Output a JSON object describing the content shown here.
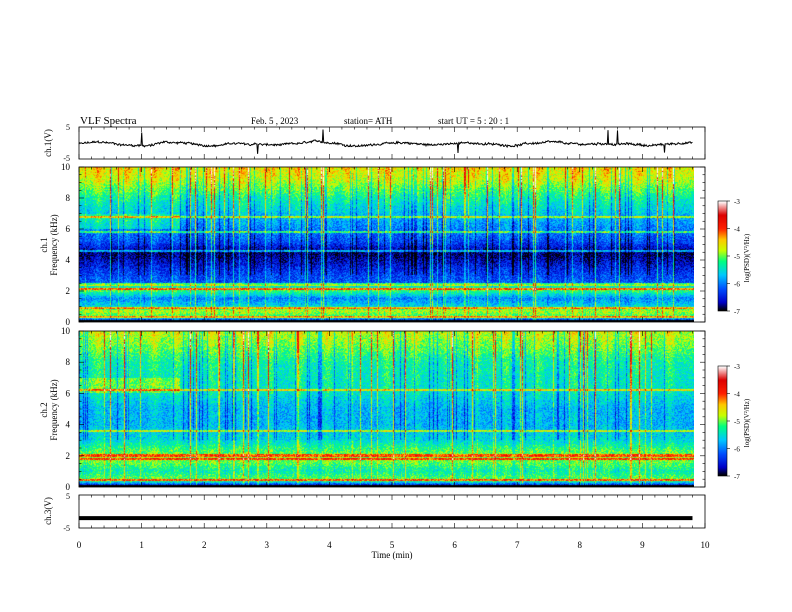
{
  "header": {
    "title": "VLF  Spectra",
    "date": "Feb. 5  , 2023",
    "station": "station= ATH",
    "start_ut": "start  UT  =    5  : 20 : 1"
  },
  "chart_data": [
    {
      "type": "line",
      "panel": "ch1-waveform",
      "ylabel": "ch.1(V)",
      "yticks": [
        "5",
        "-5"
      ],
      "ylim": [
        -5,
        5
      ],
      "xlim": [
        0,
        10
      ],
      "x_end": 9.8,
      "baseline": -0.3,
      "noise_amplitude": 0.35,
      "spike_times": [
        1.0,
        2.85,
        3.9,
        6.05,
        8.45,
        8.6,
        9.35
      ]
    },
    {
      "type": "heatmap",
      "panel": "ch1-spectrogram",
      "ylabel": "ch.1\nFrequency  (kHz)",
      "yticks": [
        "0",
        "2",
        "4",
        "6",
        "8",
        "10"
      ],
      "ylim": [
        0,
        10
      ],
      "xlim": [
        0,
        10
      ],
      "x_end": 9.8,
      "colorbar": {
        "label": "log(PSD)(V²/Hz)",
        "ticks": [
          "-3",
          "-4",
          "-5",
          "-6",
          "-7"
        ],
        "range": [
          -7,
          -3
        ],
        "colors": [
          "#000000",
          "#0000c8",
          "#0050ff",
          "#00c8ff",
          "#00ff80",
          "#c8ff00",
          "#ffc800",
          "#ff2000",
          "#e00000",
          "#ffffff"
        ]
      },
      "frequency_profile_log_psd": [
        {
          "f": 0.0,
          "v": -7.0
        },
        {
          "f": 0.3,
          "v": -5.2
        },
        {
          "f": 0.7,
          "v": -4.8
        },
        {
          "f": 1.0,
          "v": -5.6
        },
        {
          "f": 1.5,
          "v": -6.0
        },
        {
          "f": 2.1,
          "v": -5.0
        },
        {
          "f": 2.5,
          "v": -6.2
        },
        {
          "f": 3.2,
          "v": -6.4
        },
        {
          "f": 4.4,
          "v": -6.9
        },
        {
          "f": 5.2,
          "v": -6.3
        },
        {
          "f": 6.5,
          "v": -5.9
        },
        {
          "f": 8.0,
          "v": -5.4
        },
        {
          "f": 9.2,
          "v": -4.8
        },
        {
          "f": 10.0,
          "v": -4.6
        }
      ],
      "tonal_lines_khz": [
        0.3,
        0.9,
        2.1,
        2.4,
        4.6,
        5.8,
        6.8
      ],
      "burst_times": [
        0.3,
        0.75,
        1.2,
        1.55,
        2.1,
        2.6,
        3.05,
        3.5,
        3.95,
        4.3,
        4.9,
        5.35,
        5.9,
        6.3,
        6.8,
        7.3,
        7.9,
        8.4,
        8.9,
        9.4
      ]
    },
    {
      "type": "heatmap",
      "panel": "ch2-spectrogram",
      "ylabel": "ch.2\nFrequency  (kHz)",
      "yticks": [
        "0",
        "2",
        "4",
        "6",
        "8",
        "10"
      ],
      "ylim": [
        0,
        10
      ],
      "xlim": [
        0,
        10
      ],
      "x_end": 9.8,
      "colorbar": {
        "label": "log(PSD)(V²/Hz)",
        "ticks": [
          "-3",
          "-4",
          "-5",
          "-6",
          "-7"
        ],
        "range": [
          -7,
          -3
        ]
      },
      "frequency_profile_log_psd": [
        {
          "f": 0.0,
          "v": -7.0
        },
        {
          "f": 0.4,
          "v": -5.0
        },
        {
          "f": 1.0,
          "v": -5.4
        },
        {
          "f": 1.8,
          "v": -4.9
        },
        {
          "f": 2.4,
          "v": -5.2
        },
        {
          "f": 3.0,
          "v": -5.6
        },
        {
          "f": 4.0,
          "v": -5.8
        },
        {
          "f": 5.0,
          "v": -5.8
        },
        {
          "f": 6.2,
          "v": -5.5
        },
        {
          "f": 8.0,
          "v": -5.4
        },
        {
          "f": 9.2,
          "v": -5.0
        },
        {
          "f": 10.0,
          "v": -4.8
        }
      ],
      "tonal_lines_khz": [
        0.4,
        1.8,
        2.0,
        3.6,
        6.2
      ],
      "burst_times": [
        0.3,
        0.75,
        1.2,
        1.55,
        2.1,
        2.6,
        3.05,
        3.5,
        3.95,
        4.3,
        4.9,
        5.35,
        5.9,
        6.3,
        6.8,
        7.3,
        7.9,
        8.4,
        8.9,
        9.4
      ]
    },
    {
      "type": "line",
      "panel": "ch3-waveform",
      "ylabel": "ch.3(V)",
      "yticks": [
        "5",
        "-5"
      ],
      "ylim": [
        -5,
        5
      ],
      "xlim": [
        0,
        10
      ],
      "x_end": 9.8,
      "baseline": -2.0,
      "noise_amplitude": 0.0
    }
  ],
  "xaxis": {
    "label": "Time  (min)",
    "ticks": [
      "0",
      "1",
      "2",
      "3",
      "4",
      "5",
      "6",
      "7",
      "8",
      "9",
      "10"
    ]
  }
}
